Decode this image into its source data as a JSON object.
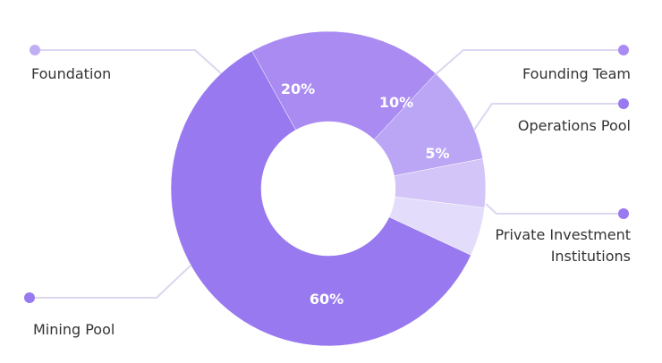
{
  "chart_data": {
    "type": "pie",
    "donut": true,
    "categories": [
      "Private Investment Institutions",
      "Mining Pool",
      "Foundation",
      "Founding Team",
      "Operations Pool"
    ],
    "values": [
      5,
      60,
      20,
      10,
      5
    ],
    "data_labels": [
      "5%",
      "60%",
      "20%",
      "10%",
      "5%"
    ],
    "colors": [
      "#e4dcfb",
      "#9879f0",
      "#a98bf2",
      "#bba6f5",
      "#d3c5f8"
    ],
    "legend": "leader-lines",
    "label_lines": [
      "Private Investment",
      "Institutions"
    ]
  }
}
